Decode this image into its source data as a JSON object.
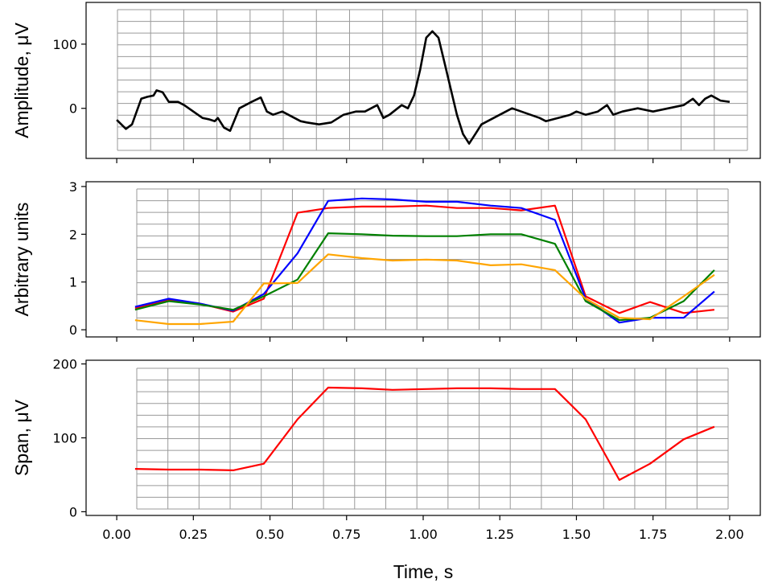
{
  "chart_data": [
    {
      "type": "line",
      "ylabel": "Amplitude, μV",
      "xlim": [
        -0.1,
        2.1
      ],
      "ylim": [
        -78,
        165
      ],
      "yticks": [
        0,
        100
      ],
      "grid": true,
      "series": [
        {
          "color": "#000000",
          "points": [
            [
              0.0,
              -18
            ],
            [
              0.03,
              -32
            ],
            [
              0.05,
              -25
            ],
            [
              0.08,
              15
            ],
            [
              0.1,
              18
            ],
            [
              0.12,
              20
            ],
            [
              0.13,
              28
            ],
            [
              0.15,
              25
            ],
            [
              0.17,
              10
            ],
            [
              0.2,
              10
            ],
            [
              0.22,
              5
            ],
            [
              0.25,
              -5
            ],
            [
              0.28,
              -15
            ],
            [
              0.3,
              -17
            ],
            [
              0.32,
              -20
            ],
            [
              0.33,
              -15
            ],
            [
              0.35,
              -30
            ],
            [
              0.37,
              -35
            ],
            [
              0.4,
              0
            ],
            [
              0.42,
              5
            ],
            [
              0.44,
              10
            ],
            [
              0.47,
              17
            ],
            [
              0.49,
              -5
            ],
            [
              0.51,
              -10
            ],
            [
              0.54,
              -5
            ],
            [
              0.56,
              -10
            ],
            [
              0.6,
              -20
            ],
            [
              0.62,
              -22
            ],
            [
              0.66,
              -25
            ],
            [
              0.7,
              -22
            ],
            [
              0.74,
              -10
            ],
            [
              0.78,
              -5
            ],
            [
              0.81,
              -5
            ],
            [
              0.85,
              5
            ],
            [
              0.87,
              -15
            ],
            [
              0.89,
              -10
            ],
            [
              0.93,
              5
            ],
            [
              0.95,
              0
            ],
            [
              0.97,
              20
            ],
            [
              0.99,
              60
            ],
            [
              1.01,
              110
            ],
            [
              1.03,
              120
            ],
            [
              1.05,
              110
            ],
            [
              1.07,
              70
            ],
            [
              1.09,
              30
            ],
            [
              1.11,
              -10
            ],
            [
              1.13,
              -40
            ],
            [
              1.15,
              -55
            ],
            [
              1.17,
              -40
            ],
            [
              1.19,
              -25
            ],
            [
              1.21,
              -20
            ],
            [
              1.23,
              -15
            ],
            [
              1.25,
              -10
            ],
            [
              1.27,
              -5
            ],
            [
              1.29,
              0
            ],
            [
              1.32,
              -5
            ],
            [
              1.35,
              -10
            ],
            [
              1.38,
              -15
            ],
            [
              1.4,
              -20
            ],
            [
              1.44,
              -15
            ],
            [
              1.48,
              -10
            ],
            [
              1.5,
              -5
            ],
            [
              1.53,
              -10
            ],
            [
              1.57,
              -5
            ],
            [
              1.6,
              5
            ],
            [
              1.62,
              -10
            ],
            [
              1.65,
              -5
            ],
            [
              1.7,
              0
            ],
            [
              1.75,
              -5
            ],
            [
              1.8,
              0
            ],
            [
              1.85,
              5
            ],
            [
              1.88,
              15
            ],
            [
              1.9,
              5
            ],
            [
              1.92,
              15
            ],
            [
              1.94,
              20
            ],
            [
              1.97,
              12
            ],
            [
              2.0,
              10
            ]
          ]
        }
      ]
    },
    {
      "type": "line",
      "ylabel": "Arbitrary units",
      "xlim": [
        -0.1,
        2.1
      ],
      "ylim": [
        -0.15,
        3.1
      ],
      "yticks": [
        0,
        1,
        2,
        3
      ],
      "grid": true,
      "x": [
        0.06,
        0.17,
        0.27,
        0.38,
        0.48,
        0.59,
        0.69,
        0.8,
        0.9,
        1.01,
        1.11,
        1.22,
        1.32,
        1.43,
        1.53,
        1.64,
        1.74,
        1.85,
        1.95
      ],
      "series": [
        {
          "color": "#ff0000",
          "values": [
            0.45,
            0.62,
            0.55,
            0.38,
            0.65,
            2.45,
            2.55,
            2.58,
            2.58,
            2.6,
            2.55,
            2.55,
            2.5,
            2.6,
            0.7,
            0.35,
            0.58,
            0.35,
            0.42
          ]
        },
        {
          "color": "#0000ff",
          "values": [
            0.48,
            0.65,
            0.55,
            0.4,
            0.75,
            1.6,
            2.7,
            2.75,
            2.73,
            2.68,
            2.68,
            2.6,
            2.55,
            2.3,
            0.65,
            0.15,
            0.25,
            0.25,
            0.8
          ]
        },
        {
          "color": "#008000",
          "values": [
            0.42,
            0.6,
            0.53,
            0.42,
            0.7,
            1.05,
            2.02,
            2.0,
            1.97,
            1.96,
            1.96,
            2.0,
            2.0,
            1.8,
            0.6,
            0.2,
            0.25,
            0.6,
            1.25
          ]
        },
        {
          "color": "#ffa500",
          "values": [
            0.2,
            0.12,
            0.12,
            0.17,
            0.97,
            0.98,
            1.58,
            1.5,
            1.45,
            1.47,
            1.45,
            1.35,
            1.37,
            1.25,
            0.65,
            0.25,
            0.22,
            0.7,
            1.15
          ]
        }
      ]
    },
    {
      "type": "line",
      "ylabel": "Span, μV",
      "xlabel": "Time, s",
      "xlim": [
        -0.1,
        2.1
      ],
      "ylim": [
        -5,
        205
      ],
      "yticks": [
        0,
        100,
        200
      ],
      "xticks": [
        "0.00",
        "0.25",
        "0.50",
        "0.75",
        "1.00",
        "1.25",
        "1.50",
        "1.75",
        "2.00"
      ],
      "grid": true,
      "x": [
        0.06,
        0.17,
        0.27,
        0.38,
        0.48,
        0.59,
        0.69,
        0.8,
        0.9,
        1.01,
        1.11,
        1.22,
        1.32,
        1.43,
        1.53,
        1.64,
        1.74,
        1.85,
        1.95
      ],
      "series": [
        {
          "color": "#ff0000",
          "values": [
            58,
            57,
            57,
            56,
            65,
            125,
            168,
            167,
            165,
            166,
            167,
            167,
            166,
            166,
            125,
            43,
            65,
            98,
            115
          ]
        }
      ]
    }
  ]
}
